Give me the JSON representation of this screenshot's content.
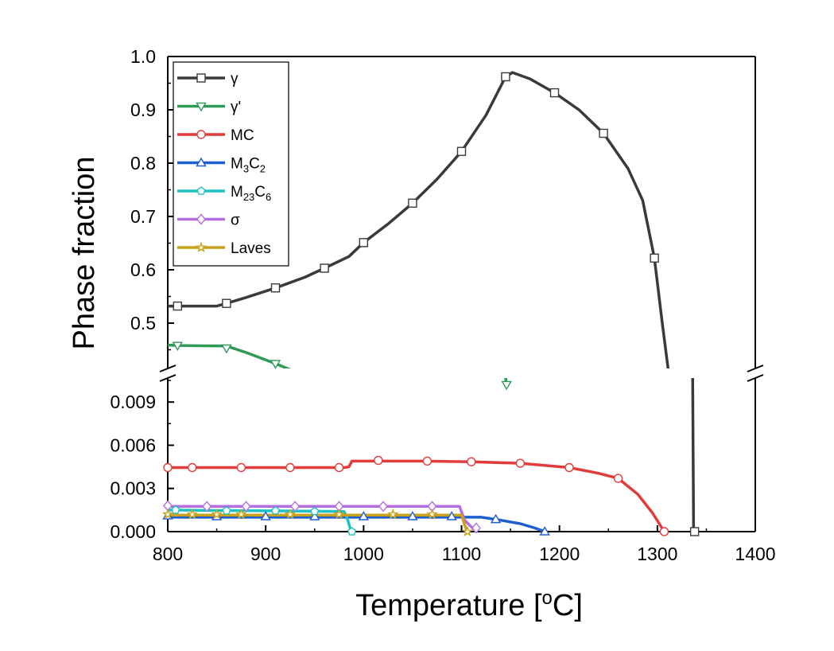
{
  "chart_data": {
    "type": "line",
    "title": "",
    "xlabel_main": "Temperature [",
    "xlabel_sup": "o",
    "xlabel_end": "C]",
    "ylabel": "Phase fraction",
    "xlim": [
      800,
      1400
    ],
    "x_ticks": [
      "800",
      "900",
      "1000",
      "1100",
      "1200",
      "1300",
      "1400"
    ],
    "upper_ylim": [
      0.4,
      1.0
    ],
    "upper_y_ticks": [
      "1.0",
      "0.9",
      "0.8",
      "0.7",
      "0.6",
      "0.5"
    ],
    "lower_ylim": [
      0,
      0.011
    ],
    "lower_y_ticks": [
      "0.009",
      "0.006",
      "0.003",
      "0.000"
    ],
    "legend_position": "top-left",
    "series": [
      {
        "name": "γ",
        "color": "#3a3a3a",
        "marker": "square",
        "upper": [
          [
            800,
            0.532
          ],
          [
            810,
            0.532
          ],
          [
            850,
            0.532
          ],
          [
            860,
            0.537
          ],
          [
            880,
            0.548
          ],
          [
            910,
            0.566
          ],
          [
            940,
            0.586
          ],
          [
            960,
            0.603
          ],
          [
            985,
            0.625
          ],
          [
            1000,
            0.651
          ],
          [
            1025,
            0.686
          ],
          [
            1050,
            0.725
          ],
          [
            1075,
            0.77
          ],
          [
            1100,
            0.822
          ],
          [
            1125,
            0.89
          ],
          [
            1145,
            0.962
          ],
          [
            1152,
            0.97
          ],
          [
            1170,
            0.958
          ],
          [
            1195,
            0.932
          ],
          [
            1220,
            0.9
          ],
          [
            1245,
            0.856
          ],
          [
            1270,
            0.79
          ],
          [
            1285,
            0.73
          ],
          [
            1297,
            0.622
          ],
          [
            1305,
            0.5
          ],
          [
            1312,
            0.4
          ]
        ],
        "upper_markers": [
          [
            810,
            0.532
          ],
          [
            860,
            0.537
          ],
          [
            910,
            0.566
          ],
          [
            960,
            0.603
          ],
          [
            1000,
            0.651
          ],
          [
            1050,
            0.725
          ],
          [
            1100,
            0.822
          ],
          [
            1145,
            0.962
          ],
          [
            1195,
            0.932
          ],
          [
            1245,
            0.856
          ],
          [
            1297,
            0.622
          ]
        ],
        "lower": [
          [
            1336,
            0.011
          ],
          [
            1337,
            0.0
          ],
          [
            1339,
            0.0
          ]
        ],
        "lower_markers": [
          [
            1338,
            0.0
          ]
        ]
      },
      {
        "name": "γ'",
        "color": "#2e9a57",
        "marker": "triangle-down",
        "upper": [
          [
            800,
            0.459
          ],
          [
            810,
            0.458
          ],
          [
            860,
            0.457
          ],
          [
            880,
            0.445
          ],
          [
            910,
            0.424
          ],
          [
            930,
            0.409
          ],
          [
            942,
            0.4
          ]
        ],
        "upper_markers": [
          [
            810,
            0.458
          ],
          [
            860,
            0.453
          ],
          [
            910,
            0.424
          ]
        ],
        "lower": [
          [
            1144,
            0.0115
          ],
          [
            1145,
            0.0108
          ],
          [
            1146,
            0.01
          ]
        ],
        "lower_markers": [
          [
            1146,
            0.0102
          ]
        ]
      },
      {
        "name": "MC",
        "color": "#e23b3b",
        "marker": "circle",
        "lower": [
          [
            800,
            0.00445
          ],
          [
            980,
            0.00445
          ],
          [
            985,
            0.0045
          ],
          [
            988,
            0.0049
          ],
          [
            1060,
            0.0049
          ],
          [
            1110,
            0.00485
          ],
          [
            1160,
            0.00475
          ],
          [
            1210,
            0.00445
          ],
          [
            1240,
            0.00405
          ],
          [
            1260,
            0.0037
          ],
          [
            1280,
            0.0026
          ],
          [
            1295,
            0.0013
          ],
          [
            1307,
            0.0
          ]
        ],
        "lower_markers": [
          [
            800,
            0.00445
          ],
          [
            825,
            0.00445
          ],
          [
            875,
            0.00445
          ],
          [
            925,
            0.00445
          ],
          [
            975,
            0.00445
          ],
          [
            1015,
            0.00495
          ],
          [
            1065,
            0.0049
          ],
          [
            1110,
            0.00485
          ],
          [
            1160,
            0.00475
          ],
          [
            1210,
            0.00445
          ],
          [
            1260,
            0.0037
          ],
          [
            1307,
            0.0
          ]
        ]
      },
      {
        "name": "M3C2",
        "label_main": "M",
        "label_sub1": "3",
        "label_mid": "C",
        "label_sub2": "2",
        "color": "#1e5fcf",
        "marker": "triangle",
        "lower": [
          [
            800,
            0.001
          ],
          [
            1100,
            0.001
          ],
          [
            1120,
            0.001
          ],
          [
            1135,
            0.00085
          ],
          [
            1160,
            0.00055
          ],
          [
            1175,
            0.00025
          ],
          [
            1185,
            0.0
          ]
        ],
        "lower_markers": [
          [
            800,
            0.0011
          ],
          [
            850,
            0.00105
          ],
          [
            900,
            0.00105
          ],
          [
            950,
            0.00105
          ],
          [
            1000,
            0.00105
          ],
          [
            1050,
            0.00105
          ],
          [
            1090,
            0.00105
          ],
          [
            1135,
            0.00085
          ],
          [
            1185,
            0.0
          ]
        ]
      },
      {
        "name": "M23C6",
        "label_main": "M",
        "label_sub1": "23",
        "label_mid": "C",
        "label_sub2": "6",
        "color": "#1ec2c2",
        "marker": "pentagon",
        "lower": [
          [
            800,
            0.0015
          ],
          [
            980,
            0.0014
          ],
          [
            983,
            0.001
          ],
          [
            986,
            0.0003
          ],
          [
            988,
            0.0
          ]
        ],
        "lower_markers": [
          [
            808,
            0.0015
          ],
          [
            860,
            0.00145
          ],
          [
            910,
            0.00145
          ],
          [
            950,
            0.0014
          ],
          [
            988,
            0.0
          ]
        ]
      },
      {
        "name": "σ",
        "color": "#b46ee0",
        "marker": "diamond",
        "lower": [
          [
            800,
            0.00175
          ],
          [
            1098,
            0.00175
          ],
          [
            1103,
            0.0008
          ],
          [
            1112,
            0.0002
          ],
          [
            1115,
            0.0
          ]
        ],
        "lower_markers": [
          [
            800,
            0.0018
          ],
          [
            840,
            0.00175
          ],
          [
            880,
            0.00175
          ],
          [
            930,
            0.00175
          ],
          [
            975,
            0.00175
          ],
          [
            1020,
            0.00175
          ],
          [
            1070,
            0.00175
          ],
          [
            1115,
            0.00025
          ]
        ]
      },
      {
        "name": "Laves",
        "color": "#c9a21a",
        "marker": "star",
        "lower": [
          [
            800,
            0.00115
          ],
          [
            1100,
            0.00115
          ],
          [
            1103,
            0.0005
          ],
          [
            1106,
            0.0
          ]
        ],
        "lower_markers": [
          [
            800,
            0.0012
          ],
          [
            825,
            0.0012
          ],
          [
            850,
            0.0012
          ],
          [
            875,
            0.0012
          ],
          [
            925,
            0.0012
          ],
          [
            975,
            0.0012
          ],
          [
            1030,
            0.0012
          ],
          [
            1070,
            0.0012
          ],
          [
            1106,
            0.0
          ]
        ]
      }
    ]
  }
}
